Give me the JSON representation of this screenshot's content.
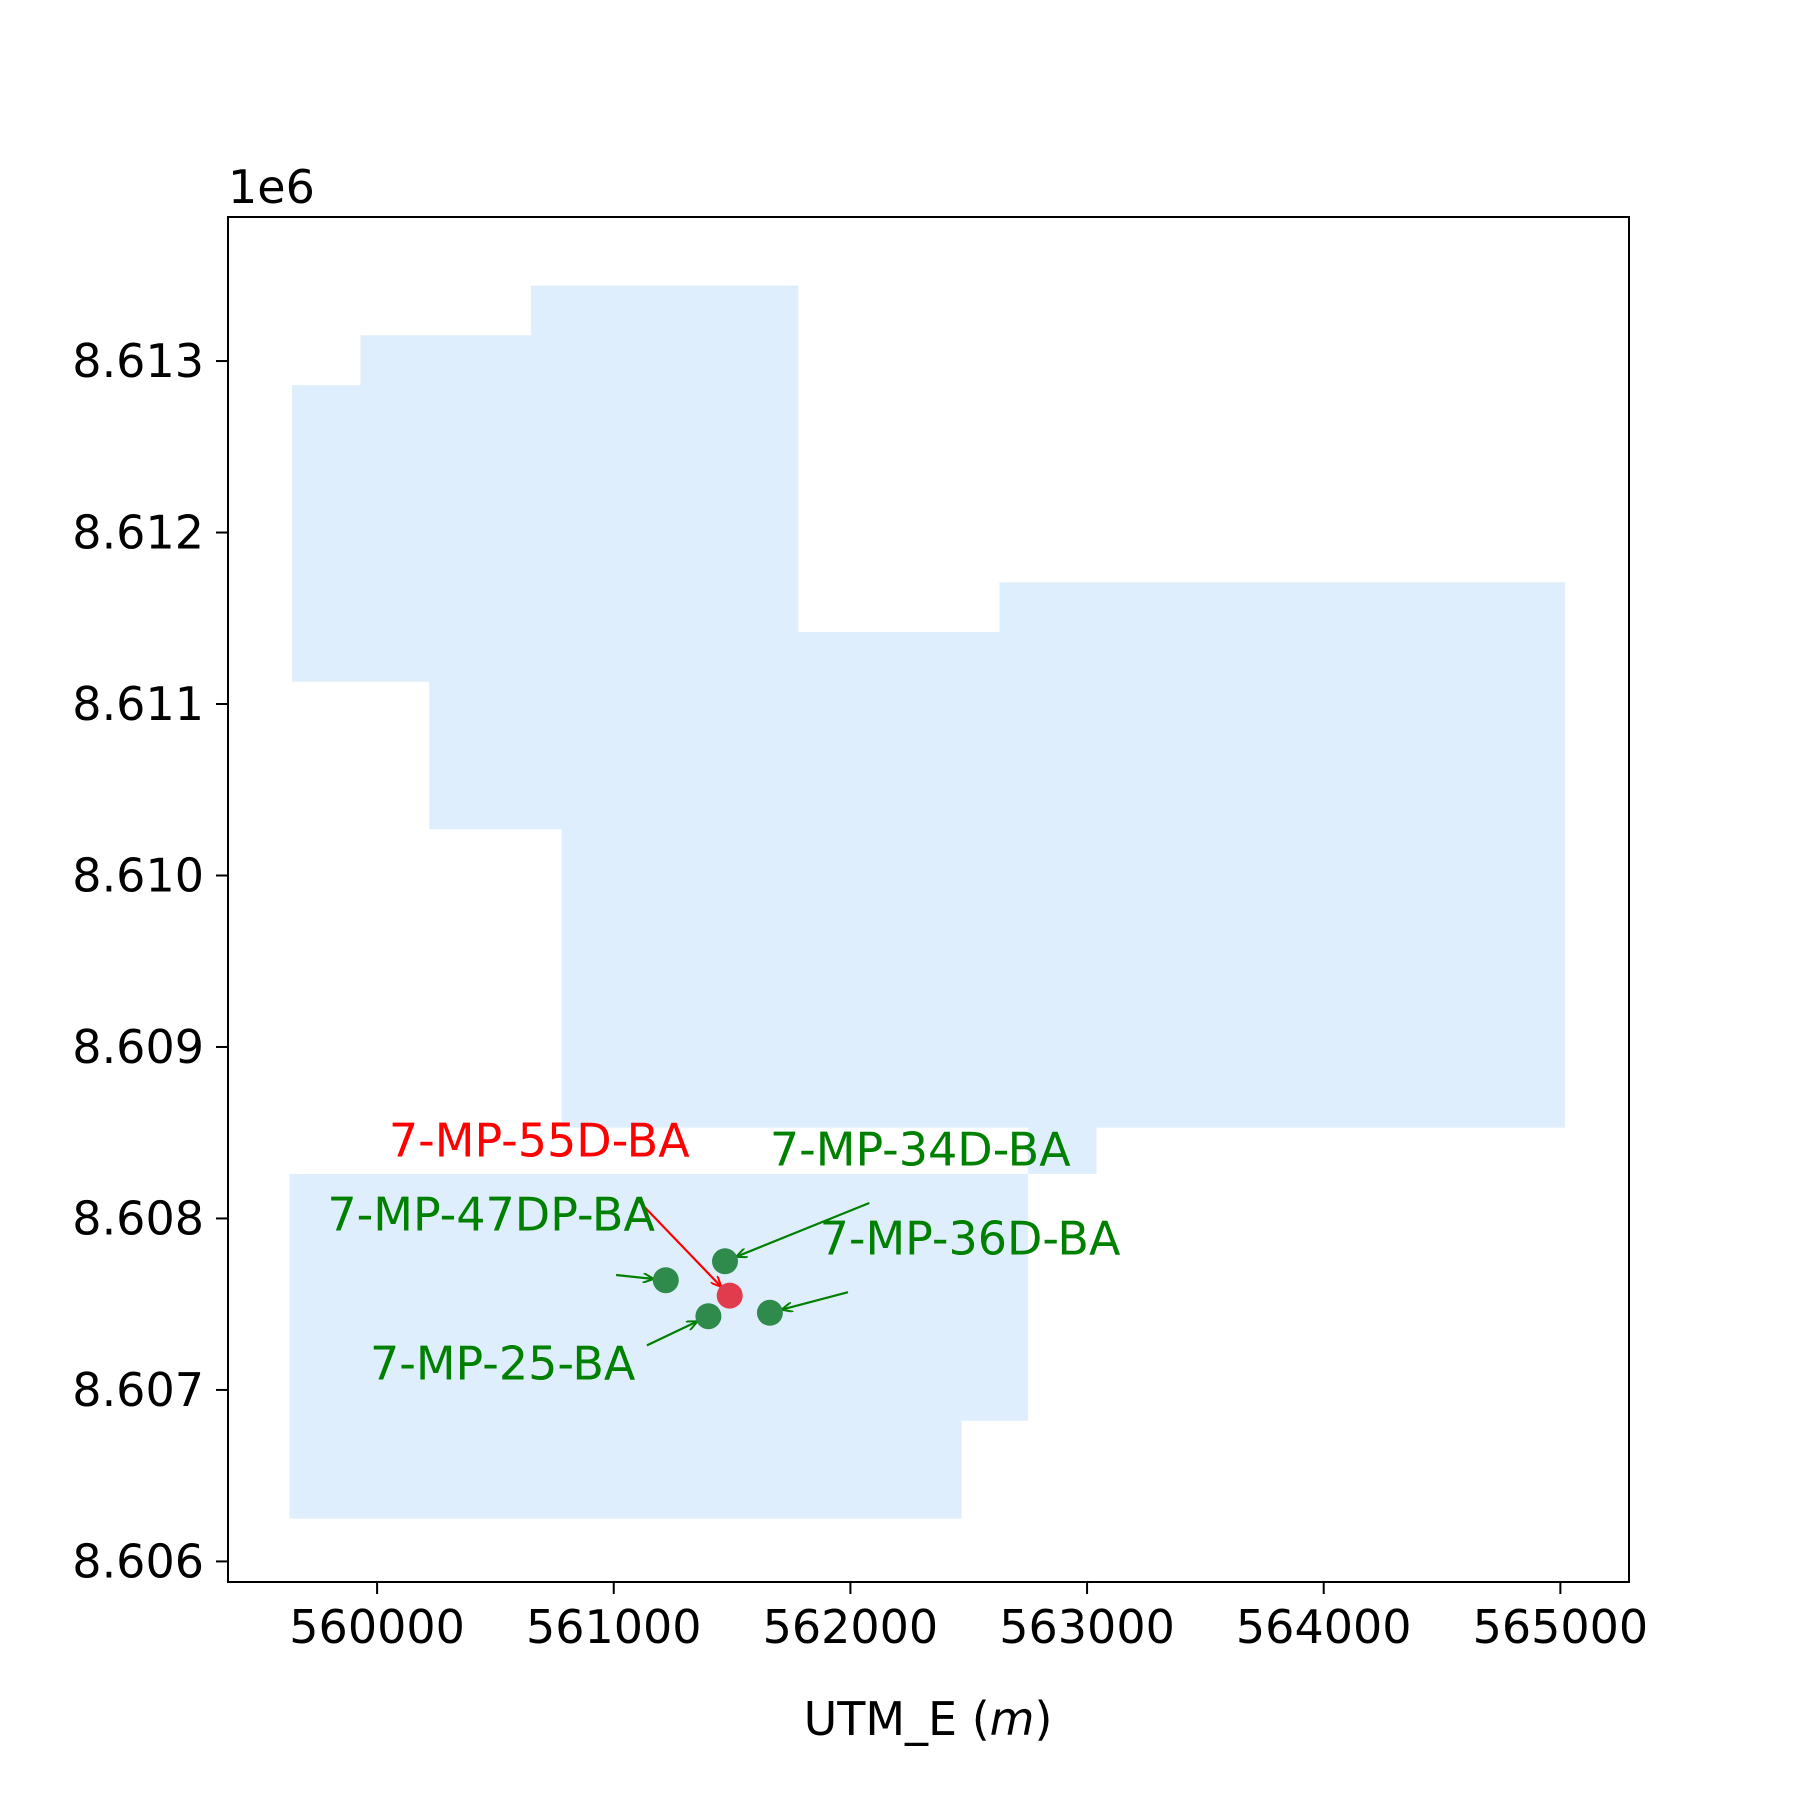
{
  "chart_data": {
    "type": "scatter",
    "title": "",
    "xlabel": "UTM_E",
    "xlabel_unit": "m",
    "ylabel": "",
    "y_offset_text": "1e6",
    "xlim": [
      559370,
      565290
    ],
    "ylim": [
      8605880,
      8613840
    ],
    "x_ticks": [
      560000,
      561000,
      562000,
      563000,
      564000,
      565000
    ],
    "x_tick_labels": [
      "560000",
      "561000",
      "562000",
      "563000",
      "564000",
      "565000"
    ],
    "y_ticks": [
      8606000,
      8607000,
      8608000,
      8609000,
      8610000,
      8611000,
      8612000,
      8613000
    ],
    "y_tick_labels": [
      "8.606",
      "8.607",
      "8.608",
      "8.609",
      "8.610",
      "8.611",
      "8.612",
      "8.613"
    ],
    "grid": false,
    "colors": {
      "region_fill": "#dfeefc",
      "green_point": "#2e8b4c",
      "red_point": "#e03c4e",
      "green_text": "#008000",
      "red_text": "#ff0000",
      "axes": "#000000"
    },
    "regions": [
      {
        "points": [
          [
            560650,
            8613440
          ],
          [
            561780,
            8613440
          ],
          [
            561780,
            8611420
          ],
          [
            562630,
            8611420
          ],
          [
            562630,
            8611710
          ],
          [
            565020,
            8611710
          ],
          [
            565020,
            8608530
          ],
          [
            560780,
            8608530
          ],
          [
            560780,
            8610270
          ],
          [
            560220,
            8610270
          ],
          [
            560220,
            8611130
          ],
          [
            559640,
            8611130
          ],
          [
            559640,
            8612860
          ],
          [
            559930,
            8612860
          ],
          [
            559930,
            8613150
          ],
          [
            560650,
            8613150
          ]
        ]
      },
      {
        "points": [
          [
            559630,
            8608260
          ],
          [
            563040,
            8608260
          ],
          [
            563040,
            8608530
          ],
          [
            562750,
            8608530
          ],
          [
            562750,
            8606820
          ],
          [
            562470,
            8606820
          ],
          [
            562470,
            8606250
          ],
          [
            559630,
            8606250
          ]
        ]
      }
    ],
    "points": [
      {
        "name": "7-MP-55D-BA",
        "x": 561490,
        "y": 8607550,
        "color": "red",
        "label_x": 560050,
        "label_y": 8608360,
        "arrow_start": [
          561100,
          8608110
        ]
      },
      {
        "name": "7-MP-34D-BA",
        "x": 561470,
        "y": 8607750,
        "color": "green",
        "label_x": 561660,
        "label_y": 8608310,
        "arrow_start": [
          562080,
          8608090
        ]
      },
      {
        "name": "7-MP-47DP-BA",
        "x": 561220,
        "y": 8607640,
        "color": "green",
        "label_x": 559790,
        "label_y": 8607930,
        "arrow_start": [
          561010,
          8607670
        ]
      },
      {
        "name": "7-MP-36D-BA",
        "x": 561660,
        "y": 8607450,
        "color": "green",
        "label_x": 561870,
        "label_y": 8607790,
        "arrow_start": [
          561990,
          8607570
        ]
      },
      {
        "name": "7-MP-25-BA",
        "x": 561400,
        "y": 8607430,
        "color": "green",
        "label_x": 559970,
        "label_y": 8607060,
        "arrow_start": [
          561140,
          8607260
        ]
      }
    ]
  }
}
